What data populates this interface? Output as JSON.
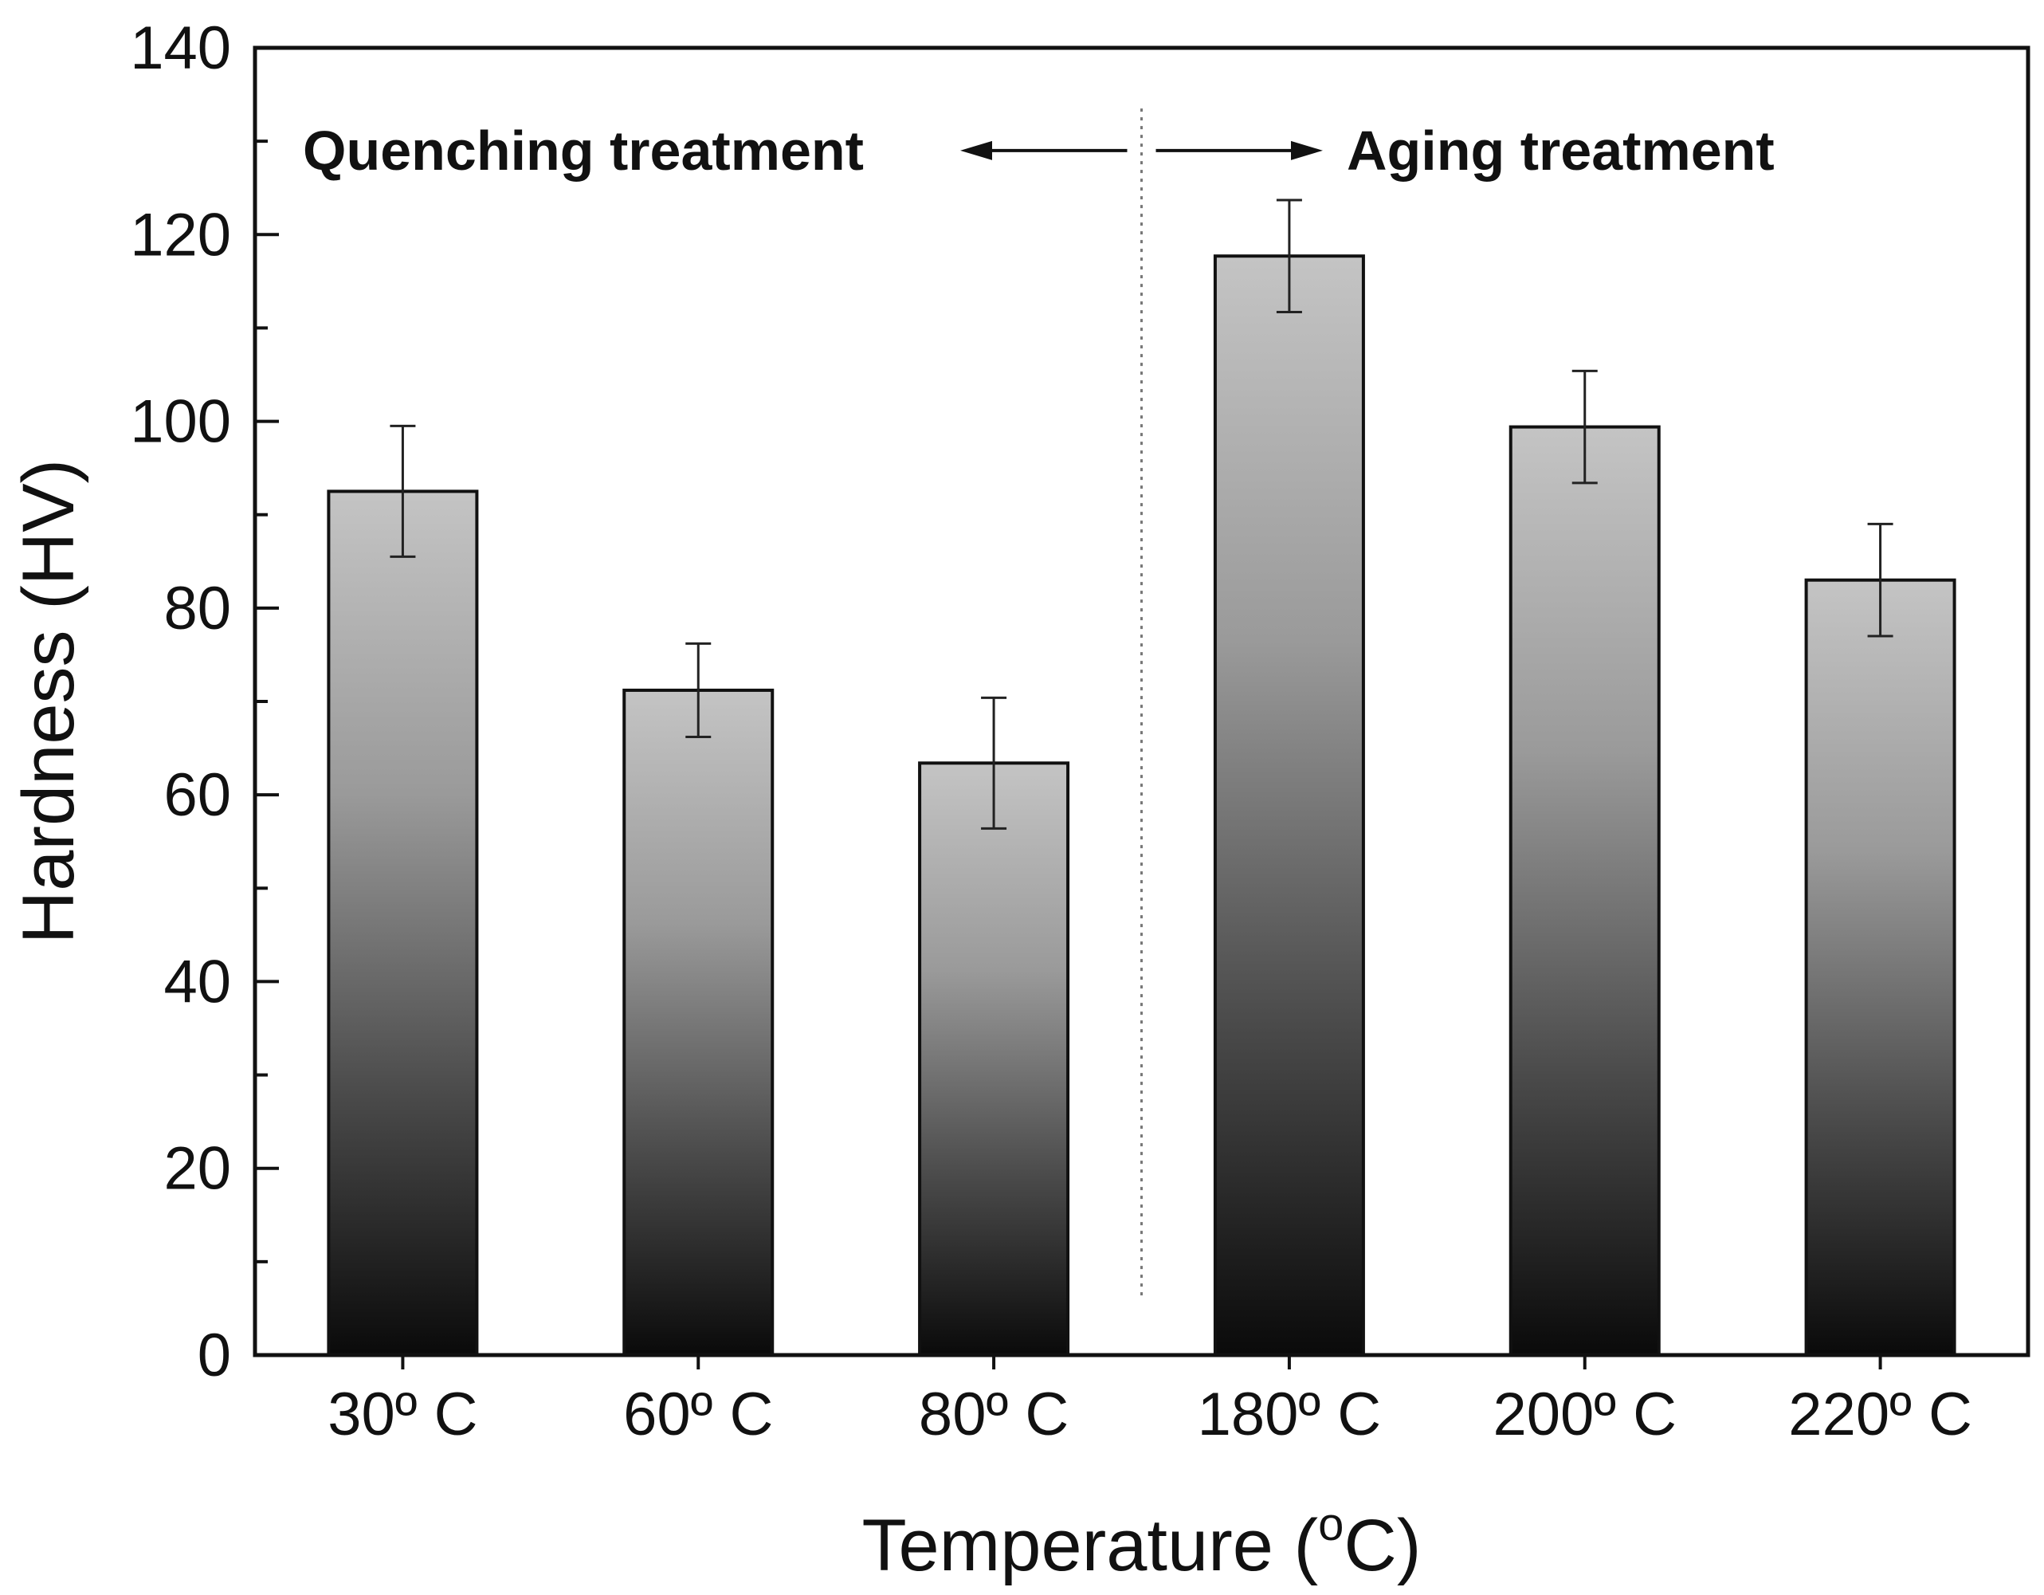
{
  "chart_data": {
    "type": "bar",
    "title": "",
    "categories": [
      "30º C",
      "60º C",
      "80º C",
      "180º C",
      "200º C",
      "220º C"
    ],
    "values": [
      92.5,
      71.2,
      63.4,
      117.7,
      99.4,
      83.0
    ],
    "errors": [
      7.0,
      5.0,
      7.0,
      6.0,
      6.0,
      6.0
    ],
    "xlabel": "Temperature (",
    "xlabel_sup": "o",
    "xlabel_unit": "C)",
    "ylabel": "Hardness (HV)",
    "ylim": [
      0,
      140
    ],
    "yticks": [
      0,
      20,
      40,
      60,
      80,
      100,
      120,
      140
    ],
    "ytick_labels": [
      "0",
      "20",
      "40",
      "60",
      "80",
      "100",
      "120",
      "140"
    ],
    "grid": false,
    "annotations": {
      "left": "Quenching treatment",
      "right": "Aging treatment"
    },
    "bar_gradient": {
      "top": "#c6c6c6",
      "bottom": "#0c0c0c"
    },
    "axis_color": "#111111"
  }
}
